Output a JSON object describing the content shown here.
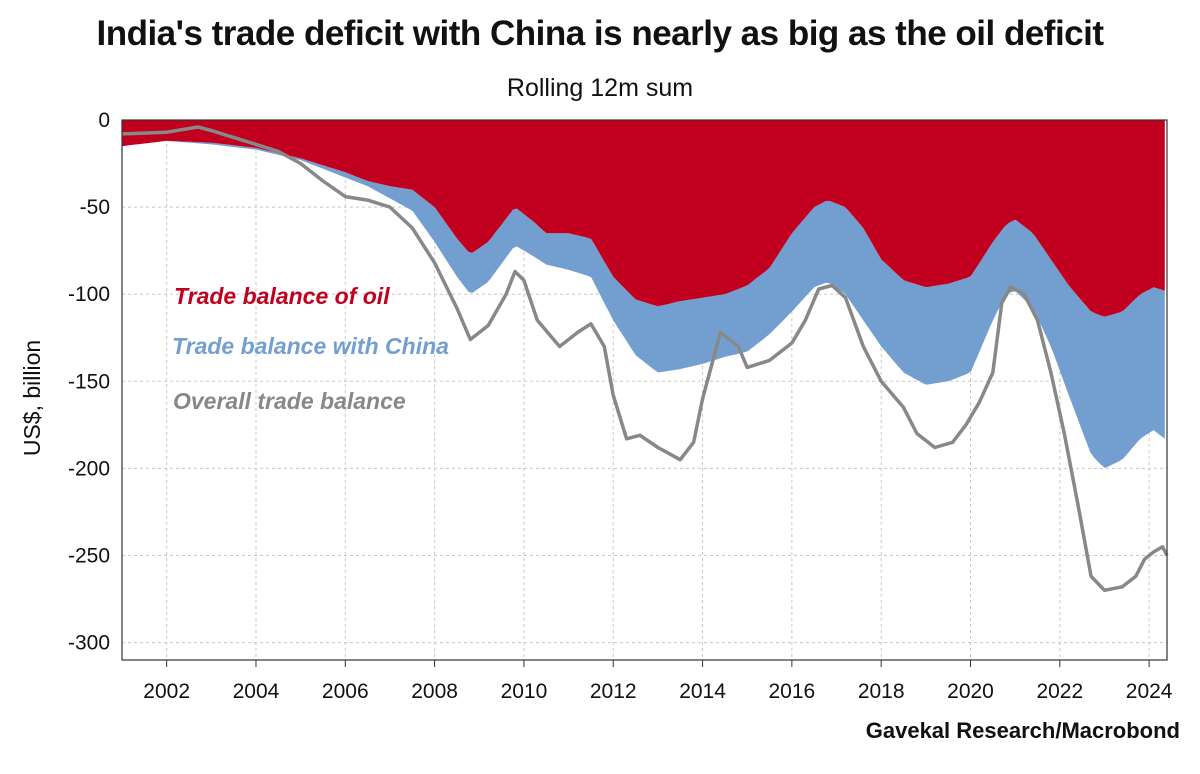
{
  "chart_data": {
    "type": "area",
    "title": "India's trade deficit with China is nearly as big as the oil deficit",
    "subtitle": "Rolling 12m sum",
    "ylabel": "US$, billion",
    "source": "Gavekal Research/Macrobond",
    "xlim": [
      2001.0,
      2024.4
    ],
    "ylim": [
      -310,
      0
    ],
    "yticks": [
      0,
      -50,
      -100,
      -150,
      -200,
      -250,
      -300
    ],
    "xticks": [
      2002,
      2004,
      2006,
      2008,
      2010,
      2012,
      2014,
      2016,
      2018,
      2020,
      2022,
      2024
    ],
    "series": [
      {
        "name": "Trade balance of oil",
        "color": "#c1001f",
        "style": "stacked-area",
        "points": [
          [
            2001.0,
            -15
          ],
          [
            2002.0,
            -12
          ],
          [
            2003.0,
            -13
          ],
          [
            2004.0,
            -16
          ],
          [
            2005.0,
            -22
          ],
          [
            2006.0,
            -30
          ],
          [
            2006.5,
            -35
          ],
          [
            2007.0,
            -38
          ],
          [
            2007.5,
            -40
          ],
          [
            2008.0,
            -50
          ],
          [
            2008.5,
            -68
          ],
          [
            2008.8,
            -77
          ],
          [
            2009.2,
            -70
          ],
          [
            2009.8,
            -50
          ],
          [
            2010.2,
            -58
          ],
          [
            2010.5,
            -65
          ],
          [
            2011.0,
            -65
          ],
          [
            2011.5,
            -68
          ],
          [
            2012.0,
            -90
          ],
          [
            2012.5,
            -103
          ],
          [
            2013.0,
            -107
          ],
          [
            2013.5,
            -104
          ],
          [
            2014.0,
            -102
          ],
          [
            2014.5,
            -100
          ],
          [
            2015.0,
            -95
          ],
          [
            2015.5,
            -85
          ],
          [
            2016.0,
            -65
          ],
          [
            2016.5,
            -50
          ],
          [
            2016.8,
            -46
          ],
          [
            2017.2,
            -50
          ],
          [
            2017.6,
            -62
          ],
          [
            2018.0,
            -80
          ],
          [
            2018.5,
            -92
          ],
          [
            2019.0,
            -96
          ],
          [
            2019.5,
            -94
          ],
          [
            2020.0,
            -90
          ],
          [
            2020.5,
            -70
          ],
          [
            2020.8,
            -60
          ],
          [
            2021.0,
            -57
          ],
          [
            2021.4,
            -65
          ],
          [
            2021.8,
            -80
          ],
          [
            2022.2,
            -95
          ],
          [
            2022.7,
            -110
          ],
          [
            2023.0,
            -113
          ],
          [
            2023.4,
            -110
          ],
          [
            2023.8,
            -100
          ],
          [
            2024.1,
            -96
          ],
          [
            2024.35,
            -98
          ]
        ]
      },
      {
        "name": "Trade balance with China",
        "color": "#739fd0",
        "style": "stacked-area",
        "points": [
          [
            2001.0,
            -15
          ],
          [
            2002.0,
            -12
          ],
          [
            2003.0,
            -14
          ],
          [
            2004.0,
            -17
          ],
          [
            2005.0,
            -23
          ],
          [
            2006.0,
            -33
          ],
          [
            2006.5,
            -38
          ],
          [
            2007.0,
            -45
          ],
          [
            2007.5,
            -52
          ],
          [
            2008.0,
            -70
          ],
          [
            2008.5,
            -90
          ],
          [
            2008.8,
            -100
          ],
          [
            2009.2,
            -93
          ],
          [
            2009.8,
            -72
          ],
          [
            2010.2,
            -78
          ],
          [
            2010.5,
            -83
          ],
          [
            2011.0,
            -86
          ],
          [
            2011.5,
            -90
          ],
          [
            2012.0,
            -115
          ],
          [
            2012.5,
            -135
          ],
          [
            2013.0,
            -145
          ],
          [
            2013.5,
            -143
          ],
          [
            2014.0,
            -140
          ],
          [
            2014.5,
            -136
          ],
          [
            2015.0,
            -133
          ],
          [
            2015.5,
            -123
          ],
          [
            2016.0,
            -110
          ],
          [
            2016.5,
            -96
          ],
          [
            2016.8,
            -93
          ],
          [
            2017.2,
            -100
          ],
          [
            2017.6,
            -115
          ],
          [
            2018.0,
            -130
          ],
          [
            2018.5,
            -145
          ],
          [
            2019.0,
            -152
          ],
          [
            2019.5,
            -150
          ],
          [
            2020.0,
            -145
          ],
          [
            2020.5,
            -115
          ],
          [
            2020.8,
            -100
          ],
          [
            2021.0,
            -98
          ],
          [
            2021.4,
            -108
          ],
          [
            2021.8,
            -130
          ],
          [
            2022.2,
            -158
          ],
          [
            2022.7,
            -192
          ],
          [
            2023.0,
            -200
          ],
          [
            2023.4,
            -195
          ],
          [
            2023.8,
            -183
          ],
          [
            2024.1,
            -178
          ],
          [
            2024.35,
            -183
          ]
        ]
      },
      {
        "name": "Overall trade balance",
        "color": "#888888",
        "style": "line",
        "points": [
          [
            2001.0,
            -8
          ],
          [
            2002.0,
            -7
          ],
          [
            2002.7,
            -4
          ],
          [
            2003.0,
            -6
          ],
          [
            2003.5,
            -10
          ],
          [
            2004.0,
            -14
          ],
          [
            2004.5,
            -18
          ],
          [
            2005.0,
            -25
          ],
          [
            2005.5,
            -35
          ],
          [
            2006.0,
            -44
          ],
          [
            2006.5,
            -46
          ],
          [
            2007.0,
            -50
          ],
          [
            2007.5,
            -62
          ],
          [
            2008.0,
            -82
          ],
          [
            2008.5,
            -108
          ],
          [
            2008.8,
            -126
          ],
          [
            2009.2,
            -118
          ],
          [
            2009.6,
            -100
          ],
          [
            2009.8,
            -87
          ],
          [
            2010.0,
            -92
          ],
          [
            2010.3,
            -115
          ],
          [
            2010.8,
            -130
          ],
          [
            2011.2,
            -122
          ],
          [
            2011.5,
            -117
          ],
          [
            2011.8,
            -130
          ],
          [
            2012.0,
            -158
          ],
          [
            2012.3,
            -183
          ],
          [
            2012.6,
            -181
          ],
          [
            2013.0,
            -188
          ],
          [
            2013.5,
            -195
          ],
          [
            2013.8,
            -185
          ],
          [
            2014.0,
            -160
          ],
          [
            2014.4,
            -122
          ],
          [
            2014.8,
            -130
          ],
          [
            2015.0,
            -142
          ],
          [
            2015.5,
            -138
          ],
          [
            2016.0,
            -128
          ],
          [
            2016.3,
            -115
          ],
          [
            2016.6,
            -97
          ],
          [
            2016.9,
            -95
          ],
          [
            2017.2,
            -102
          ],
          [
            2017.6,
            -130
          ],
          [
            2018.0,
            -150
          ],
          [
            2018.5,
            -165
          ],
          [
            2018.8,
            -180
          ],
          [
            2019.2,
            -188
          ],
          [
            2019.6,
            -185
          ],
          [
            2019.9,
            -175
          ],
          [
            2020.2,
            -162
          ],
          [
            2020.5,
            -145
          ],
          [
            2020.7,
            -105
          ],
          [
            2020.9,
            -96
          ],
          [
            2021.2,
            -100
          ],
          [
            2021.5,
            -115
          ],
          [
            2021.8,
            -145
          ],
          [
            2022.1,
            -180
          ],
          [
            2022.4,
            -220
          ],
          [
            2022.7,
            -262
          ],
          [
            2023.0,
            -270
          ],
          [
            2023.4,
            -268
          ],
          [
            2023.7,
            -262
          ],
          [
            2023.9,
            -252
          ],
          [
            2024.1,
            -248
          ],
          [
            2024.3,
            -245
          ],
          [
            2024.4,
            -250
          ]
        ]
      }
    ]
  }
}
